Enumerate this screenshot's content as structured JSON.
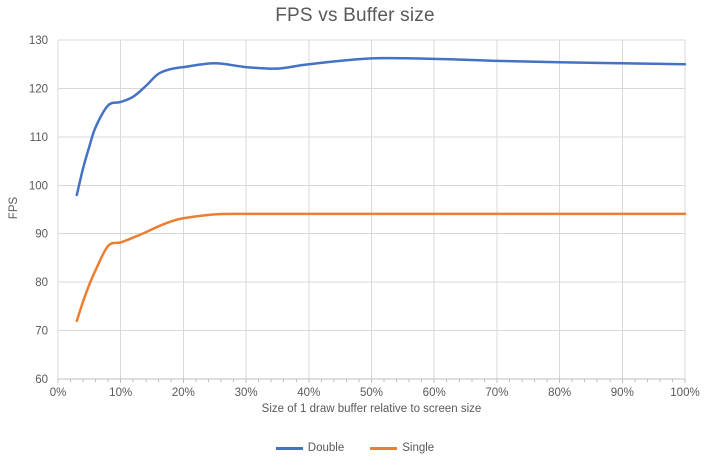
{
  "chart_data": {
    "type": "line",
    "title": "FPS vs Buffer size",
    "xlabel": "Size of 1 draw buffer relative to screen size",
    "ylabel": "FPS",
    "xlim": [
      0,
      100
    ],
    "ylim": [
      60,
      130
    ],
    "x_ticks": [
      "0%",
      "10%",
      "20%",
      "30%",
      "40%",
      "50%",
      "60%",
      "70%",
      "80%",
      "90%",
      "100%"
    ],
    "x_tick_values": [
      0,
      10,
      20,
      30,
      40,
      50,
      60,
      70,
      80,
      90,
      100
    ],
    "y_ticks": [
      60,
      70,
      80,
      90,
      100,
      110,
      120,
      130
    ],
    "grid": true,
    "line_smoothing": true,
    "legend_position": "bottom",
    "x_percent": [
      3,
      4,
      5,
      6,
      8,
      10,
      12,
      14,
      16,
      18,
      20,
      25,
      30,
      35,
      40,
      50,
      60,
      70,
      80,
      90,
      100
    ],
    "series": [
      {
        "name": "Double",
        "color": "#4472C4",
        "values": [
          98,
          103.5,
          108,
          112,
          116.5,
          117.2,
          118.3,
          120.5,
          123,
          124,
          124.4,
          125.2,
          124.4,
          124.1,
          125,
          126.2,
          126.1,
          125.7,
          125.4,
          125.2,
          125
        ]
      },
      {
        "name": "Single",
        "color": "#ED7D31",
        "values": [
          72,
          76,
          79.5,
          82.5,
          87.5,
          88.2,
          89.2,
          90.3,
          91.5,
          92.5,
          93.2,
          94,
          94.1,
          94.1,
          94.1,
          94.1,
          94.1,
          94.1,
          94.1,
          94.1,
          94.1
        ]
      }
    ],
    "style": {
      "gridline_color": "#D9D9D9",
      "axis_line_color": "#BFBFBF",
      "text_color": "#595959",
      "line_width": 2.5
    }
  }
}
